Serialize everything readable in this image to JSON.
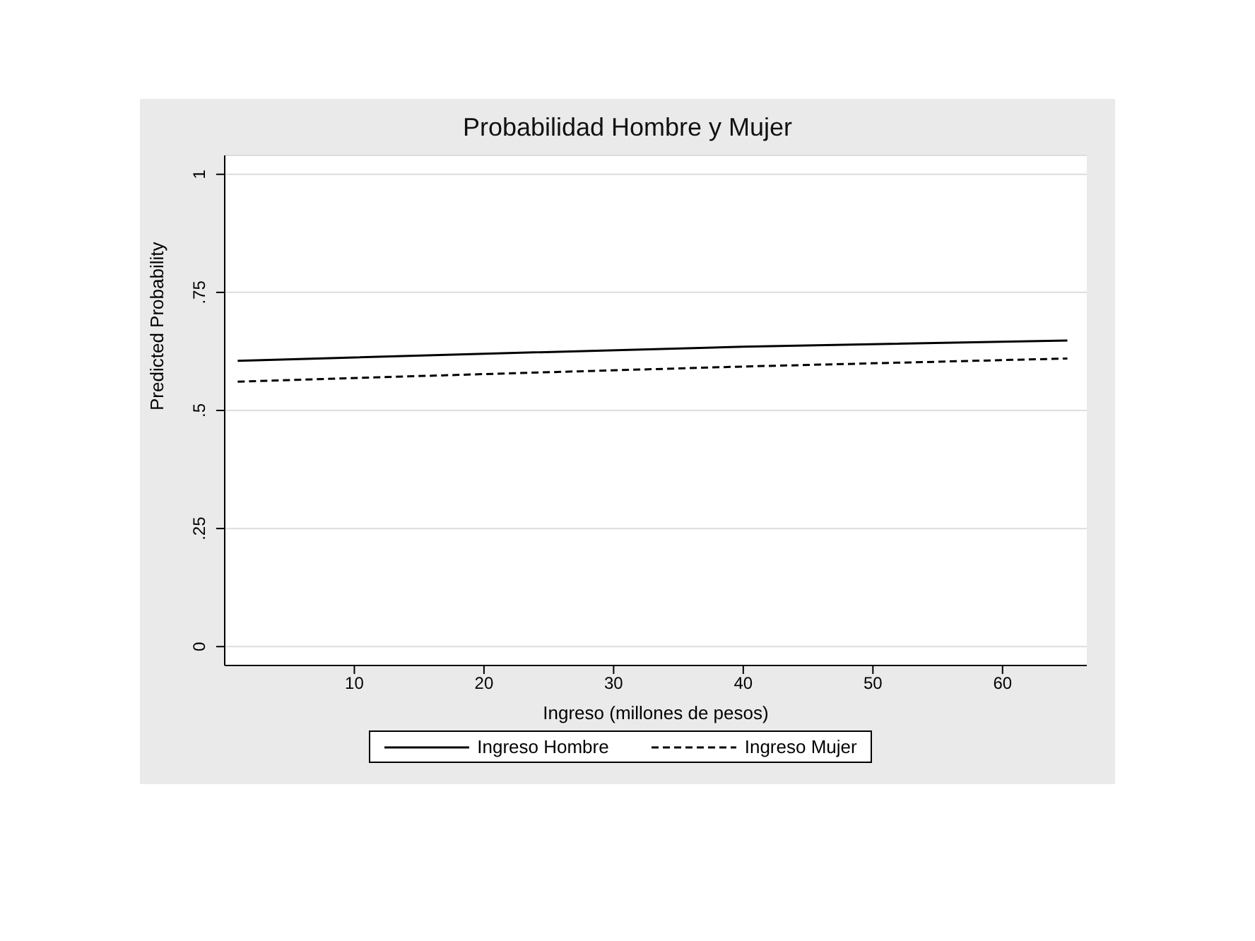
{
  "chart_data": {
    "type": "line",
    "title": "Probabilidad Hombre y Mujer",
    "xlabel": "Ingreso (millones de pesos)",
    "ylabel": "Predicted Probability",
    "x": [
      1,
      20,
      40,
      65
    ],
    "series": [
      {
        "name": "Ingreso Hombre",
        "color": "#000000",
        "values": [
          0.605,
          0.62,
          0.635,
          0.648
        ],
        "line_style": "solid"
      },
      {
        "name": "Ingreso Mujer",
        "color": "#000000",
        "values": [
          0.561,
          0.577,
          0.593,
          0.61
        ],
        "line_style": "dashed"
      }
    ],
    "xlim": [
      0,
      66.5
    ],
    "xticks": [
      10,
      20,
      30,
      40,
      50,
      60
    ],
    "ylim": [
      -0.04,
      1.04
    ],
    "yticks": [
      {
        "value": 0,
        "label": "0"
      },
      {
        "value": 0.25,
        "label": ".25"
      },
      {
        "value": 0.5,
        "label": ".5"
      },
      {
        "value": 0.75,
        "label": ".75"
      },
      {
        "value": 1,
        "label": "1"
      }
    ],
    "grid": "y",
    "legend": "bottom",
    "marker": "none"
  }
}
